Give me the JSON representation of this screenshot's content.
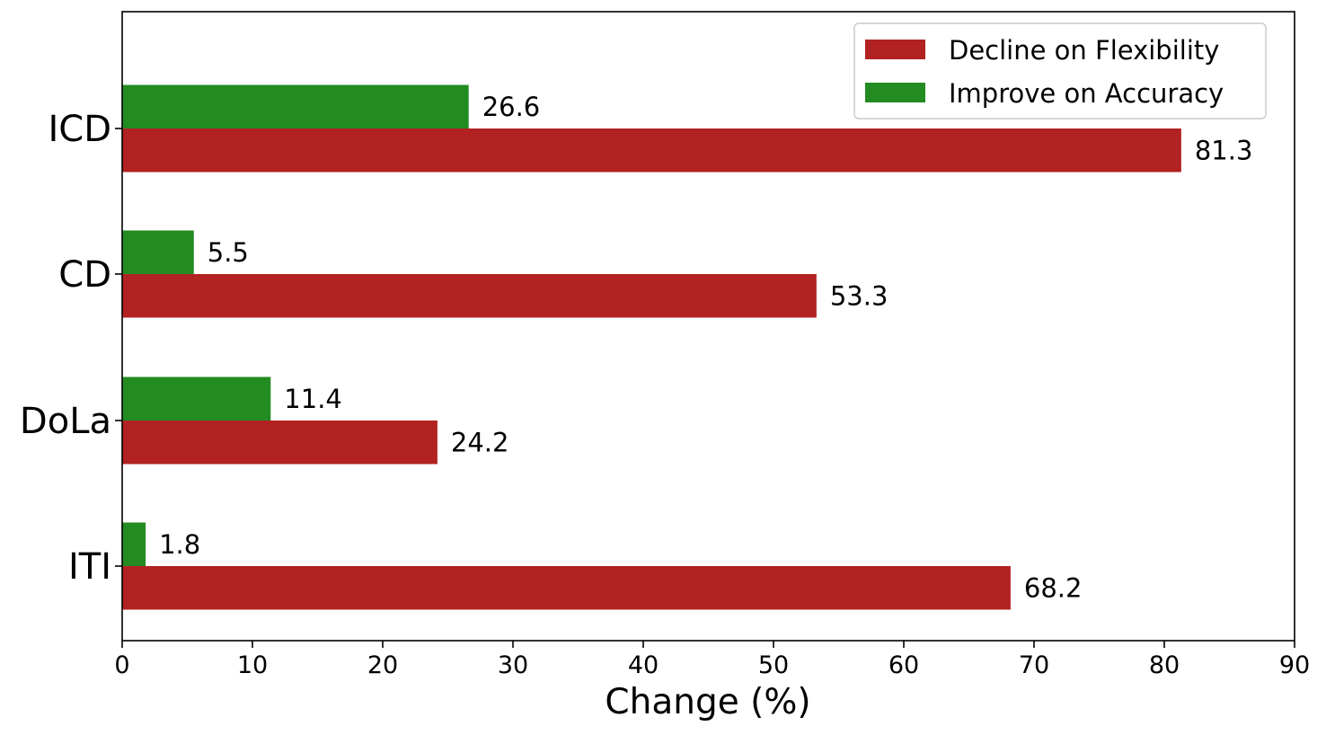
{
  "chart_data": {
    "type": "bar",
    "orientation": "horizontal",
    "categories": [
      "ICD",
      "CD",
      "DoLa",
      "ITI"
    ],
    "series": [
      {
        "name": "Decline on Flexibility",
        "values": [
          81.3,
          53.3,
          24.2,
          68.2
        ],
        "color": "#b22222"
      },
      {
        "name": "Improve on Accuracy",
        "values": [
          26.6,
          5.5,
          11.4,
          1.8
        ],
        "color": "#228b22"
      }
    ],
    "value_labels": {
      "Decline on Flexibility": [
        "81.3",
        "53.3",
        "24.2",
        "68.2"
      ],
      "Improve on Accuracy": [
        "26.6",
        "5.5",
        "11.4",
        "1.8"
      ]
    },
    "xlabel": "Change (%)",
    "ylabel": "",
    "xlim": [
      0,
      90
    ],
    "xticks": [
      0,
      10,
      20,
      30,
      40,
      50,
      60,
      70,
      80,
      90
    ],
    "grid": false,
    "legend_position": "top-right"
  }
}
